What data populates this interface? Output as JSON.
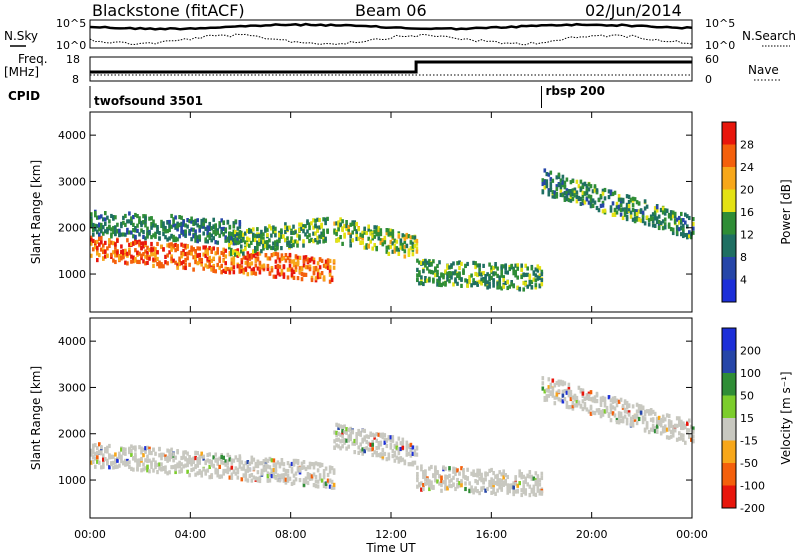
{
  "header": {
    "station": "Blackstone (fitACF)",
    "beam": "Beam 06",
    "date": "02/Jun/2014"
  },
  "top_panels": {
    "nsky_label": "N.Sky",
    "nsky_ticks": [
      "10^5",
      "10^0"
    ],
    "nsearch_label": "N.Search",
    "nsearch_ticks": [
      "10^5",
      "10^0"
    ],
    "freq_label_1": "Freq.",
    "freq_label_2": "[MHz]",
    "freq_ticks": [
      "18",
      "8"
    ],
    "nave_label": "Nave",
    "nave_ticks": [
      "60",
      "0"
    ],
    "cpid_label": "CPID",
    "cpid_segments": [
      {
        "name": "twofsound 3501",
        "start_h": 0,
        "end_h": 18.0
      },
      {
        "name": "rbsp 200",
        "start_h": 18.0,
        "end_h": 24
      }
    ]
  },
  "chart_data": [
    {
      "type": "heatmap",
      "ylabel": "Slant Range [km]",
      "xlabel": "Time UT",
      "yticks": [
        "1000",
        "2000",
        "3000",
        "4000"
      ],
      "ylim": [
        180,
        4500
      ],
      "xlim": [
        0,
        24
      ],
      "xticks": [
        "00:00",
        "04:00",
        "08:00",
        "12:00",
        "16:00",
        "20:00",
        "00:00"
      ],
      "colorbar_label": "Power [dB]",
      "colorbar_ticks": [
        "28",
        "24",
        "20",
        "16",
        "12",
        "8",
        "4"
      ],
      "colorbar_colors": [
        "#e8160c",
        "#f4600c",
        "#f7a71a",
        "#e4e214",
        "#2f8d36",
        "#1f6f62",
        "#2646a8",
        "#1c2fd8"
      ],
      "bands": [
        {
          "t0": 0.0,
          "t1": 9.7,
          "r0": 1550,
          "r1": 1080,
          "level": 24
        },
        {
          "t0": 9.7,
          "t1": 13.0,
          "r0": 1950,
          "r1": 1560,
          "level": 14
        },
        {
          "t0": 13.0,
          "t1": 18.0,
          "r0": 1050,
          "r1": 900,
          "level": 11
        },
        {
          "t0": 0.0,
          "t1": 6.0,
          "r0": 2100,
          "r1": 1900,
          "level": 9
        },
        {
          "t0": 5.5,
          "t1": 9.5,
          "r0": 1650,
          "r1": 1950,
          "level": 12
        },
        {
          "t0": 18.0,
          "t1": 24.0,
          "r0": 3000,
          "r1": 2000,
          "level": 10
        }
      ]
    },
    {
      "type": "heatmap",
      "ylabel": "Slant Range [km]",
      "xlabel": "Time UT",
      "yticks": [
        "1000",
        "2000",
        "3000",
        "4000"
      ],
      "ylim": [
        180,
        4500
      ],
      "xlim": [
        0,
        24
      ],
      "xticks": [
        "00:00",
        "04:00",
        "08:00",
        "12:00",
        "16:00",
        "20:00",
        "00:00"
      ],
      "colorbar_label": "Velocity [m s⁻¹]",
      "colorbar_ticks": [
        "200",
        "100",
        "50",
        "15",
        "-15",
        "-50",
        "-100",
        "-200"
      ],
      "colorbar_colors": [
        "#1c2fd8",
        "#2646a8",
        "#2f8d36",
        "#7ccd2c",
        "#c8c8c0",
        "#f7a71a",
        "#f4600c",
        "#e8160c"
      ],
      "bands": [
        {
          "t0": 0.0,
          "t1": 9.7,
          "r0": 1550,
          "r1": 1080,
          "level": 0
        },
        {
          "t0": 9.7,
          "t1": 13.0,
          "r0": 1950,
          "r1": 1560,
          "level": 0
        },
        {
          "t0": 13.0,
          "t1": 18.0,
          "r0": 1050,
          "r1": 900,
          "level": 0
        },
        {
          "t0": 18.0,
          "t1": 24.0,
          "r0": 3000,
          "r1": 2000,
          "level": 0
        }
      ]
    }
  ],
  "colors": {
    "background": "#ffffff",
    "axis": "#000000",
    "ground_scatter": "#c8c8c0"
  }
}
